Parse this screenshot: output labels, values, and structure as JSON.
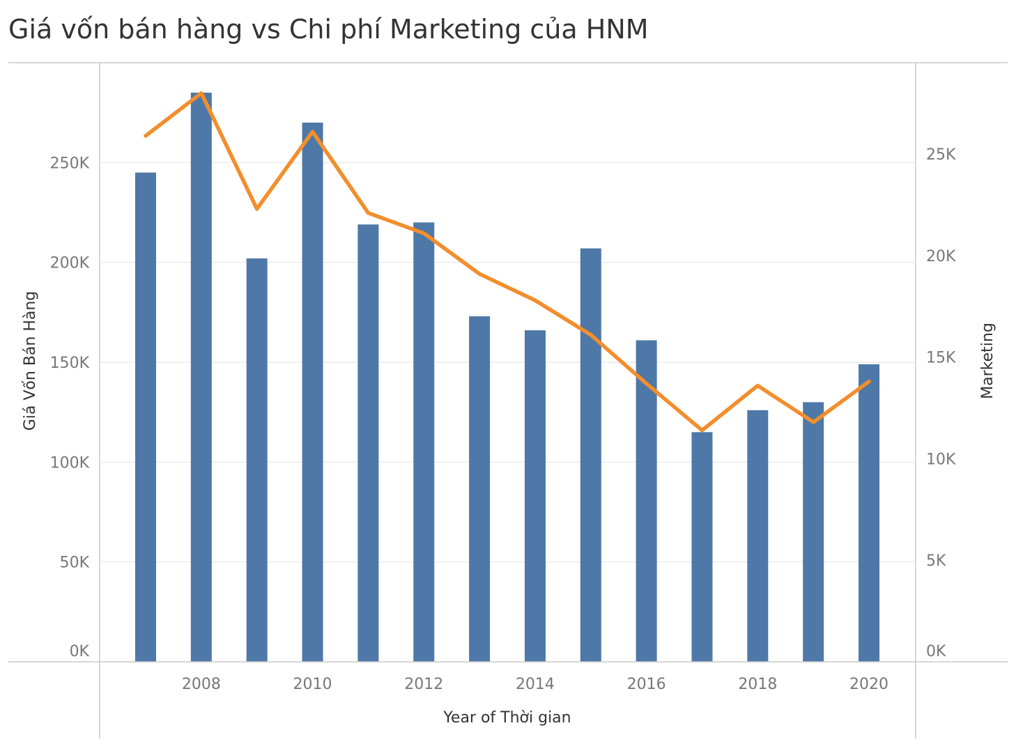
{
  "chart_data": {
    "type": "bar+line",
    "title": "Giá vốn bán hàng vs Chi phí Marketing của HNM",
    "xlabel": "Year of Thời gian",
    "ylabel_left": "Giá Vốn Bán Hàng",
    "ylabel_right": "Marketing",
    "x_ticks": [
      "2008",
      "2010",
      "2012",
      "2014",
      "2016",
      "2018",
      "2020"
    ],
    "y_left_ticks": [
      "0K",
      "50K",
      "100K",
      "150K",
      "200K",
      "250K"
    ],
    "y_right_ticks": [
      "0K",
      "5K",
      "10K",
      "15K",
      "20K",
      "25K"
    ],
    "ylim_left": [
      0,
      300000
    ],
    "ylim_right": [
      0,
      29500
    ],
    "years": [
      2007,
      2008,
      2009,
      2010,
      2011,
      2012,
      2013,
      2014,
      2015,
      2016,
      2017,
      2018,
      2019,
      2020
    ],
    "series": [
      {
        "name": "Giá Vốn Bán Hàng",
        "kind": "bar",
        "axis": "left",
        "color": "#4e78a7",
        "values": [
          245000,
          285000,
          202000,
          270000,
          219000,
          220000,
          173000,
          166000,
          207000,
          161000,
          115000,
          126000,
          130000,
          149000
        ]
      },
      {
        "name": "Marketing",
        "kind": "line",
        "axis": "right",
        "color": "#f28e2c",
        "values": [
          25900,
          28000,
          22300,
          26100,
          22100,
          21100,
          19100,
          17800,
          16100,
          13700,
          11400,
          13600,
          11800,
          13800
        ]
      }
    ],
    "grid": true
  }
}
